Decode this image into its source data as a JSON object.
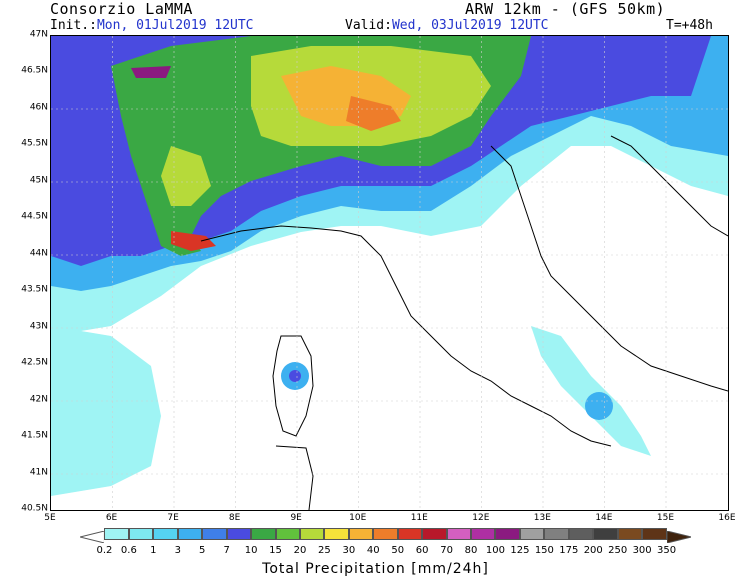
{
  "header": {
    "org": "Consorzio LaMMA",
    "model": "ARW 12km - (GFS 50km)",
    "init_label": "Init.:",
    "init_value": "Mon, 01Jul2019 12UTC",
    "valid_label": "Valid:",
    "valid_value": "Wed, 03Jul2019 12UTC",
    "lead": "T=+48h"
  },
  "axes": {
    "lon_ticks": [
      "5E",
      "6E",
      "7E",
      "8E",
      "9E",
      "10E",
      "11E",
      "12E",
      "13E",
      "14E",
      "15E",
      "16E"
    ],
    "lat_ticks": [
      "47N",
      "46.5N",
      "46N",
      "45.5N",
      "45N",
      "44.5N",
      "44N",
      "43.5N",
      "43N",
      "42.5N",
      "42N",
      "41.5N",
      "41N",
      "40.5N"
    ]
  },
  "legend": {
    "title": "Total Precipitation [mm/24h]",
    "levels": [
      "0.2",
      "0.6",
      "1",
      "3",
      "5",
      "7",
      "10",
      "15",
      "20",
      "25",
      "30",
      "40",
      "50",
      "60",
      "70",
      "80",
      "100",
      "125",
      "150",
      "175",
      "200",
      "250",
      "300",
      "350"
    ],
    "colors": [
      "#9ff4f4",
      "#7ee8f0",
      "#55d2f2",
      "#3db0f0",
      "#3f7fe8",
      "#4a4be0",
      "#3aa844",
      "#61c13c",
      "#b6da3a",
      "#f5e23a",
      "#f5b235",
      "#ee7d2a",
      "#d93525",
      "#b8182a",
      "#d45fc0",
      "#ae2fa3",
      "#8b1a80",
      "#a0a0a0",
      "#808080",
      "#5e5e5e",
      "#3f3f3f",
      "#7a4a20",
      "#5e3417",
      "#3f220c"
    ]
  }
}
